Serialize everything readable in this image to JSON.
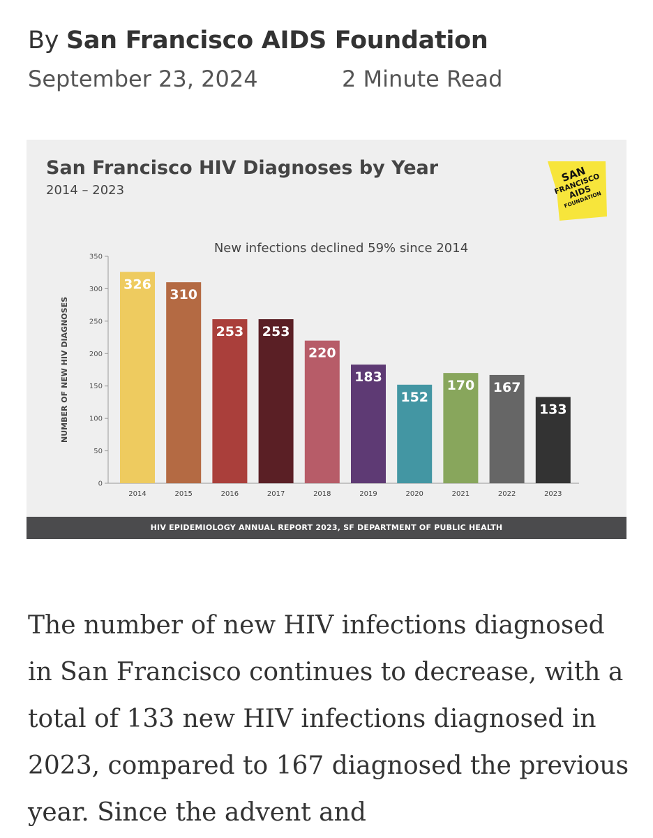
{
  "article": {
    "byline_prefix": "By",
    "author": "San Francisco AIDS Foundation",
    "date": "September 23, 2024",
    "read_time": "2 Minute Read",
    "body": "The number of new HIV infections diagnosed in San Francisco continues to decrease, with a total of 133 new HIV infections diagnosed in 2023, compared to 167 diagnosed the previous year. Since the advent and"
  },
  "logo": {
    "lines": [
      "SAN",
      "FRANCISCO",
      "AIDS",
      "FOUNDATION"
    ],
    "color": "#f7e53b"
  },
  "source_note": "HIV EPIDEMIOLOGY ANNUAL REPORT 2023, SF DEPARTMENT OF PUBLIC HEALTH",
  "chart_data": {
    "type": "bar",
    "title": "San Francisco HIV Diagnoses by Year",
    "subtitle": "2014 – 2023",
    "annotation": "New infections declined 59% since 2014",
    "xlabel": "",
    "ylabel": "NUMBER OF NEW HIV DIAGNOSES",
    "ylim": [
      0,
      350
    ],
    "yticks": [
      0,
      50,
      100,
      150,
      200,
      250,
      300,
      350
    ],
    "grid": false,
    "legend": "none",
    "categories": [
      "2014",
      "2015",
      "2016",
      "2017",
      "2018",
      "2019",
      "2020",
      "2021",
      "2022",
      "2023"
    ],
    "values": [
      326,
      310,
      253,
      253,
      220,
      183,
      152,
      170,
      167,
      133
    ],
    "colors": [
      "#eecb5f",
      "#b46a43",
      "#aa3f3b",
      "#5a1f25",
      "#b75c68",
      "#5e3a74",
      "#4396a3",
      "#88a65c",
      "#666666",
      "#333333"
    ]
  }
}
